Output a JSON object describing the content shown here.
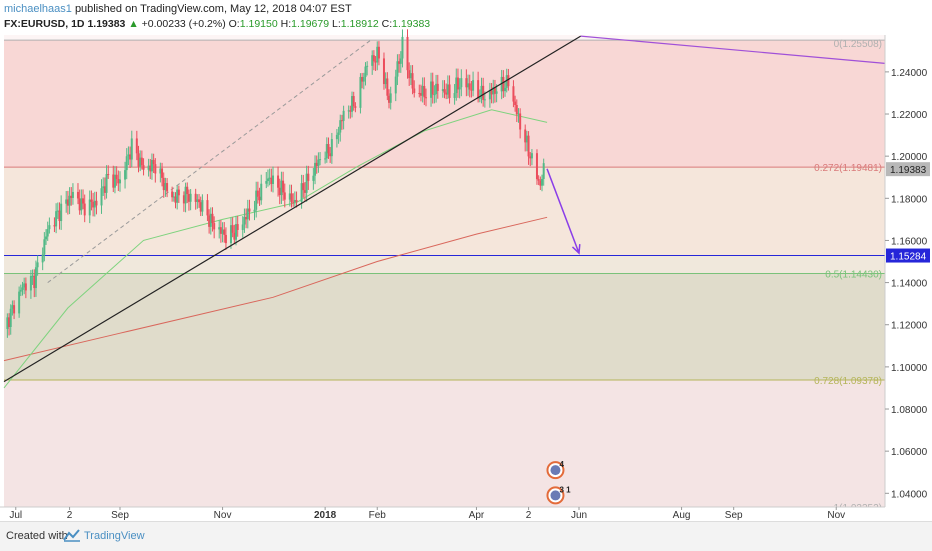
{
  "header": {
    "author": "michaelhaas1",
    "published_text": "published on TradingView.com, May 12, 2018 04:07 EST",
    "symbol": "FX:EURUSD, 1D",
    "last": "1.19383",
    "change": "+0.00233 (+0.2%)",
    "open_label": "O:",
    "open": "1.19150",
    "high_label": "H:",
    "high": "1.19679",
    "low_label": "L:",
    "low": "1.18912",
    "close_label": "C:",
    "close": "1.19383"
  },
  "footer": {
    "created": "Created with",
    "brand": "TradingView"
  },
  "chart_data": {
    "type": "candlestick",
    "symbol": "FX:EURUSD",
    "interval": "1D",
    "ylim": [
      1.0335,
      1.2575
    ],
    "yticks": [
      1.24,
      1.22,
      1.2,
      1.18,
      1.16,
      1.14,
      1.12,
      1.1,
      1.08,
      1.06,
      1.04
    ],
    "ytick_labels": [
      "1.24000",
      "1.22000",
      "1.20000",
      "1.18000",
      "1.16000",
      "1.14000",
      "1.12000",
      "1.10000",
      "1.08000",
      "1.06000",
      "1.04000"
    ],
    "xtick_labels": [
      "Jul",
      "2",
      "Sep",
      "Nov",
      "2018",
      "Feb",
      "Apr",
      "2",
      "Jun",
      "Aug",
      "Sep",
      "Nov"
    ],
    "fib_levels": [
      {
        "label": "0(1.25508)",
        "value": 1.25508
      },
      {
        "label": "0.272(1.19481)",
        "value": 1.19481
      },
      {
        "label": "0.5(1.14430)",
        "value": 1.1443
      },
      {
        "label": "0.728(1.09378)",
        "value": 1.09378
      },
      {
        "label": "1(1.03352)",
        "value": 1.03352
      }
    ],
    "horizontal_line": {
      "value": 1.15284,
      "label": "1.15284",
      "color": "#2626d9"
    },
    "price_marker": {
      "value": 1.19383,
      "label": "1.19383"
    },
    "price_path": [
      [
        "2017-06-24",
        1.118
      ],
      [
        "2017-07-05",
        1.138
      ],
      [
        "2017-07-12",
        1.142
      ],
      [
        "2017-07-20",
        1.165
      ],
      [
        "2017-07-28",
        1.175
      ],
      [
        "2017-08-04",
        1.182
      ],
      [
        "2017-08-10",
        1.176
      ],
      [
        "2017-08-18",
        1.178
      ],
      [
        "2017-08-25",
        1.19
      ],
      [
        "2017-09-01",
        1.188
      ],
      [
        "2017-09-08",
        1.205
      ],
      [
        "2017-09-15",
        1.194
      ],
      [
        "2017-09-22",
        1.196
      ],
      [
        "2017-10-01",
        1.18
      ],
      [
        "2017-10-10",
        1.182
      ],
      [
        "2017-10-18",
        1.178
      ],
      [
        "2017-10-26",
        1.168
      ],
      [
        "2017-11-03",
        1.162
      ],
      [
        "2017-11-10",
        1.165
      ],
      [
        "2017-11-20",
        1.178
      ],
      [
        "2017-11-28",
        1.19
      ],
      [
        "2017-12-05",
        1.185
      ],
      [
        "2017-12-13",
        1.178
      ],
      [
        "2017-12-20",
        1.186
      ],
      [
        "2017-12-29",
        1.199
      ],
      [
        "2018-01-05",
        1.204
      ],
      [
        "2018-01-12",
        1.22
      ],
      [
        "2018-01-19",
        1.226
      ],
      [
        "2018-01-26",
        1.244
      ],
      [
        "2018-02-02",
        1.248
      ],
      [
        "2018-02-08",
        1.226
      ],
      [
        "2018-02-16",
        1.252
      ],
      [
        "2018-02-23",
        1.23
      ],
      [
        "2018-03-02",
        1.23
      ],
      [
        "2018-03-09",
        1.232
      ],
      [
        "2018-03-16",
        1.23
      ],
      [
        "2018-03-23",
        1.235
      ],
      [
        "2018-03-30",
        1.232
      ],
      [
        "2018-04-06",
        1.228
      ],
      [
        "2018-04-13",
        1.232
      ],
      [
        "2018-04-20",
        1.235
      ],
      [
        "2018-04-27",
        1.215
      ],
      [
        "2018-05-04",
        1.198
      ],
      [
        "2018-05-09",
        1.186
      ],
      [
        "2018-05-11",
        1.19383
      ]
    ],
    "ma_green": [
      [
        "2017-06-24",
        1.09
      ],
      [
        "2017-08-01",
        1.128
      ],
      [
        "2017-09-15",
        1.16
      ],
      [
        "2017-11-01",
        1.17
      ],
      [
        "2017-12-15",
        1.178
      ],
      [
        "2018-01-20",
        1.195
      ],
      [
        "2018-03-01",
        1.212
      ],
      [
        "2018-04-10",
        1.222
      ],
      [
        "2018-05-13",
        1.216
      ]
    ],
    "ma_red": [
      [
        "2017-06-24",
        1.103
      ],
      [
        "2017-09-01",
        1.116
      ],
      [
        "2017-12-01",
        1.133
      ],
      [
        "2018-02-01",
        1.15
      ],
      [
        "2018-04-01",
        1.163
      ],
      [
        "2018-05-13",
        1.171
      ]
    ],
    "trendline_black": [
      [
        "2017-06-24",
        1.093
      ],
      [
        "2018-06-02",
        1.257
      ]
    ],
    "trendline_dashed": [
      [
        "2017-07-20",
        1.14
      ],
      [
        "2018-01-28",
        1.255
      ]
    ],
    "trendline_purple": [
      [
        "2018-06-02",
        1.257
      ],
      [
        "2018-11-30",
        1.244
      ]
    ],
    "projection_arrow": [
      [
        "2018-05-13",
        1.194
      ],
      [
        "2018-06-01",
        1.154
      ]
    ],
    "zones": [
      {
        "from": 1.25508,
        "to": 1.19481,
        "color": "#f8d7d5"
      },
      {
        "from": 1.19481,
        "to": 1.15284,
        "color": "#f5e6db"
      },
      {
        "from": 1.15284,
        "to": 1.1443,
        "color": "#f0e8dc"
      },
      {
        "from": 1.1443,
        "to": 1.09378,
        "color": "#e0dccb"
      },
      {
        "from": 1.09378,
        "to": 1.03352,
        "color": "#f4e4e4"
      }
    ],
    "event_badges": [
      {
        "date": "2018-05-18",
        "value": 1.051,
        "label": "4"
      },
      {
        "date": "2018-05-18",
        "value": 1.039,
        "label": "3 1"
      }
    ]
  }
}
